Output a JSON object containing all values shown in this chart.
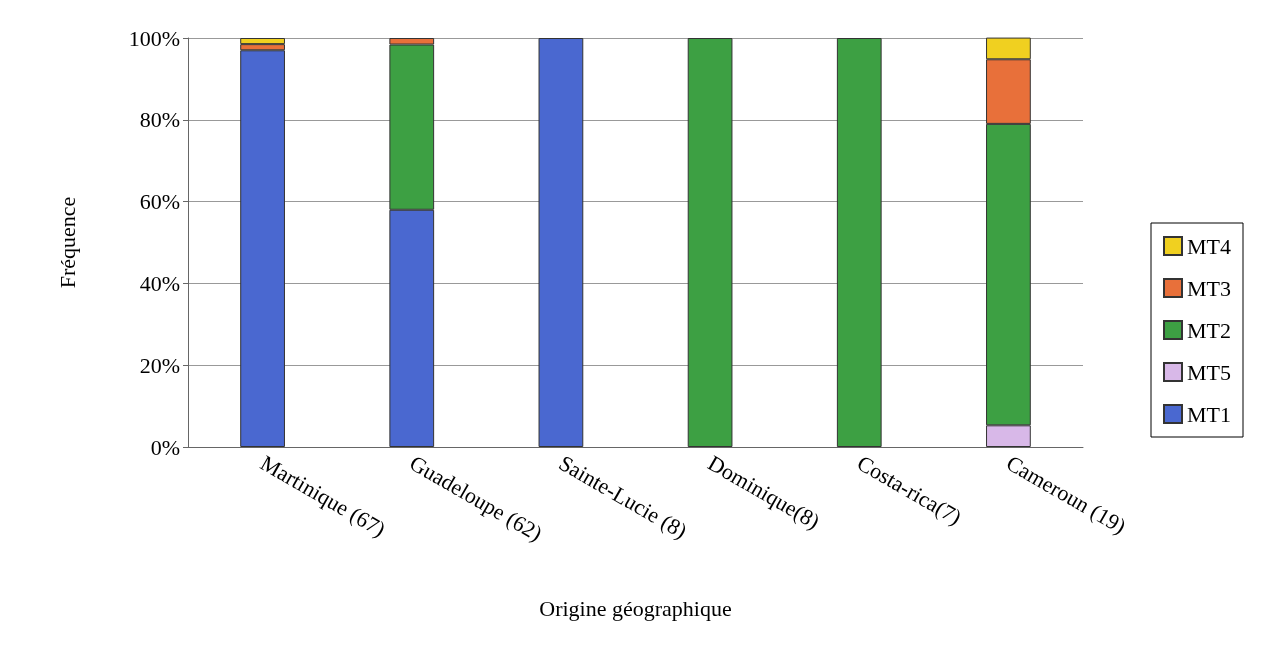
{
  "chart_data": {
    "type": "bar",
    "stacked": true,
    "xlabel": "Origine géographique",
    "ylabel": "Fréquence",
    "categories": [
      "Martinique (67)",
      "Guadeloupe (62)",
      "Sainte-Lucie (8)",
      "Dominique(8)",
      "Costa-rica(7)",
      "Cameroun (19)"
    ],
    "series": [
      {
        "name": "MT1",
        "color": "#4a68d0",
        "values": [
          97,
          58,
          100,
          null,
          null,
          null
        ]
      },
      {
        "name": "MT5",
        "color": "#d8b8e8",
        "values": [
          null,
          null,
          null,
          null,
          null,
          5.3
        ]
      },
      {
        "name": "MT2",
        "color": "#3da043",
        "values": [
          null,
          40.4,
          null,
          100,
          100,
          73.7
        ]
      },
      {
        "name": "MT3",
        "color": "#e8703a",
        "values": [
          1.5,
          1.6,
          null,
          null,
          null,
          15.8
        ]
      },
      {
        "name": "MT4",
        "color": "#f0d020",
        "values": [
          1.5,
          null,
          null,
          null,
          null,
          5.3
        ]
      }
    ],
    "ylim": [
      0,
      100
    ],
    "yticks": [
      {
        "value": 0,
        "label": "0%"
      },
      {
        "value": 20,
        "label": "20%"
      },
      {
        "value": 40,
        "label": "40%"
      },
      {
        "value": 60,
        "label": "60%"
      },
      {
        "value": 80,
        "label": "80%"
      },
      {
        "value": 100,
        "label": "100%"
      }
    ],
    "grid": "y",
    "legend": "right"
  }
}
